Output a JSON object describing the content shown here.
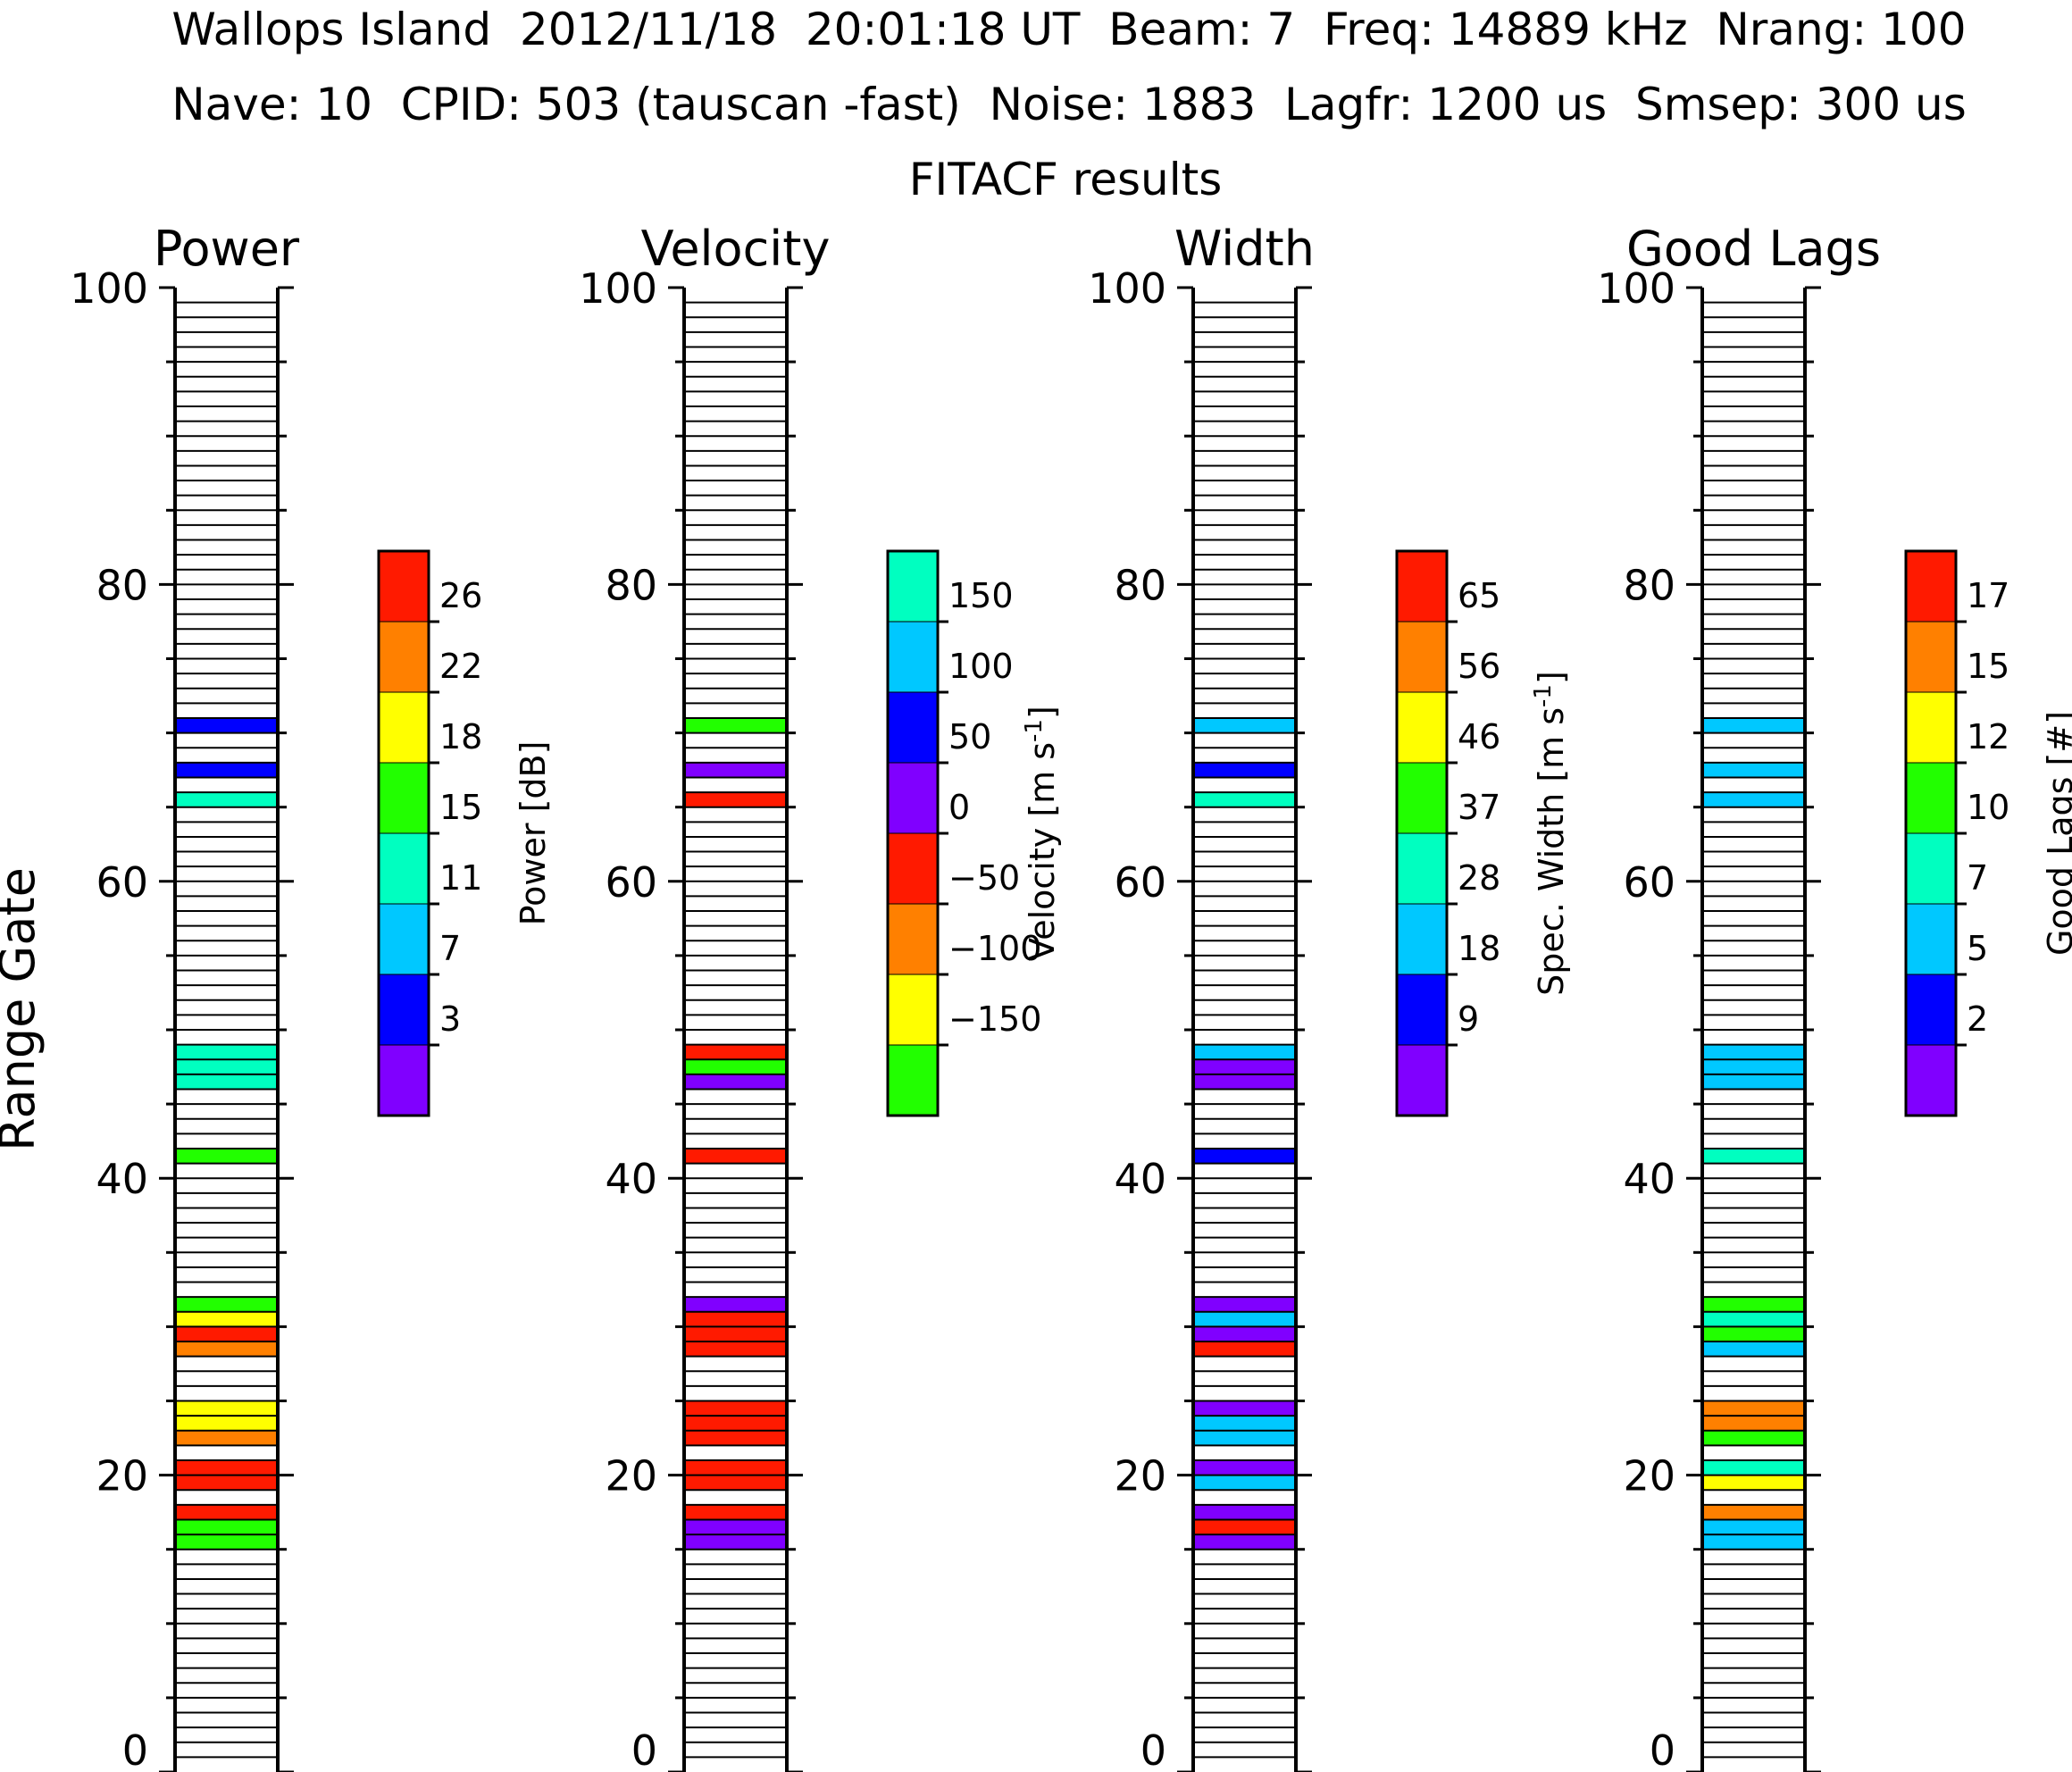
{
  "header": {
    "line1": "Wallops Island  2012/11/18  20:01:18 UT  Beam: 7  Freq: 14889 kHz  Nrang: 100",
    "line2": "Nave: 10  CPID: 503 (tauscan -fast)  Noise: 1883  Lagfr: 1200 us  Smsep: 300 us",
    "subtitle": "FITACF results"
  },
  "y_axis_label": "Range Gate",
  "colors": {
    "purple": "#8000ff",
    "blue": "#0000ff",
    "cyan": "#00c8ff",
    "aqua": "#00ffc0",
    "green": "#22ff00",
    "yellow": "#ffff00",
    "orange": "#ff8000",
    "red": "#ff1a00"
  },
  "chart_data": [
    {
      "type": "heatmap",
      "title": "Power",
      "ylabel": "Range Gate",
      "ylim": [
        0,
        100
      ],
      "y_ticks": [
        "0",
        "20",
        "40",
        "60",
        "80",
        "100"
      ],
      "colorbar": {
        "label": "Power [dB]",
        "ticks": [
          "3",
          "7",
          "11",
          "15",
          "18",
          "22",
          "26"
        ],
        "colors": [
          "#8000ff",
          "#0000ff",
          "#00c8ff",
          "#00ffc0",
          "#22ff00",
          "#ffff00",
          "#ff8000",
          "#ff1a00"
        ]
      },
      "cells": [
        {
          "gate": 15,
          "color": "#22ff00"
        },
        {
          "gate": 16,
          "color": "#22ff00"
        },
        {
          "gate": 17,
          "color": "#ff1a00"
        },
        {
          "gate": 19,
          "color": "#ff1a00"
        },
        {
          "gate": 20,
          "color": "#ff1a00"
        },
        {
          "gate": 22,
          "color": "#ff8000"
        },
        {
          "gate": 23,
          "color": "#ffff00"
        },
        {
          "gate": 24,
          "color": "#ffff00"
        },
        {
          "gate": 28,
          "color": "#ff8000"
        },
        {
          "gate": 29,
          "color": "#ff1a00"
        },
        {
          "gate": 30,
          "color": "#ffff00"
        },
        {
          "gate": 31,
          "color": "#22ff00"
        },
        {
          "gate": 41,
          "color": "#22ff00"
        },
        {
          "gate": 46,
          "color": "#00ffc0"
        },
        {
          "gate": 47,
          "color": "#00ffc0"
        },
        {
          "gate": 48,
          "color": "#00ffc0"
        },
        {
          "gate": 65,
          "color": "#00ffc0"
        },
        {
          "gate": 67,
          "color": "#0000ff"
        },
        {
          "gate": 70,
          "color": "#0000ff"
        }
      ]
    },
    {
      "type": "heatmap",
      "title": "Velocity",
      "ylim": [
        0,
        100
      ],
      "y_ticks": [
        "0",
        "20",
        "40",
        "60",
        "80",
        "100"
      ],
      "colorbar": {
        "label": "Velocity [m s-1]",
        "ticks": [
          "−150",
          "−100",
          "−50",
          "0",
          "50",
          "100",
          "150"
        ],
        "colors": [
          "#22ff00",
          "#ffff00",
          "#ff8000",
          "#ff1a00",
          "#8000ff",
          "#0000ff",
          "#00c8ff",
          "#00ffc0"
        ]
      },
      "cells": [
        {
          "gate": 15,
          "color": "#8000ff"
        },
        {
          "gate": 16,
          "color": "#8000ff"
        },
        {
          "gate": 17,
          "color": "#ff1a00"
        },
        {
          "gate": 19,
          "color": "#ff1a00"
        },
        {
          "gate": 20,
          "color": "#ff1a00"
        },
        {
          "gate": 22,
          "color": "#ff1a00"
        },
        {
          "gate": 23,
          "color": "#ff1a00"
        },
        {
          "gate": 24,
          "color": "#ff1a00"
        },
        {
          "gate": 28,
          "color": "#ff1a00"
        },
        {
          "gate": 29,
          "color": "#ff1a00"
        },
        {
          "gate": 30,
          "color": "#ff1a00"
        },
        {
          "gate": 31,
          "color": "#8000ff"
        },
        {
          "gate": 41,
          "color": "#ff1a00"
        },
        {
          "gate": 46,
          "color": "#8000ff"
        },
        {
          "gate": 47,
          "color": "#22ff00"
        },
        {
          "gate": 48,
          "color": "#ff1a00"
        },
        {
          "gate": 65,
          "color": "#ff1a00"
        },
        {
          "gate": 67,
          "color": "#8000ff"
        },
        {
          "gate": 70,
          "color": "#22ff00"
        }
      ]
    },
    {
      "type": "heatmap",
      "title": "Width",
      "ylim": [
        0,
        100
      ],
      "y_ticks": [
        "0",
        "20",
        "40",
        "60",
        "80",
        "100"
      ],
      "colorbar": {
        "label": "Spec. Width [m s-1]",
        "ticks": [
          "9",
          "18",
          "28",
          "37",
          "46",
          "56",
          "65"
        ],
        "colors": [
          "#8000ff",
          "#0000ff",
          "#00c8ff",
          "#00ffc0",
          "#22ff00",
          "#ffff00",
          "#ff8000",
          "#ff1a00"
        ]
      },
      "cells": [
        {
          "gate": 15,
          "color": "#8000ff"
        },
        {
          "gate": 16,
          "color": "#ff1a00"
        },
        {
          "gate": 17,
          "color": "#8000ff"
        },
        {
          "gate": 19,
          "color": "#00c8ff"
        },
        {
          "gate": 20,
          "color": "#8000ff"
        },
        {
          "gate": 22,
          "color": "#00c8ff"
        },
        {
          "gate": 23,
          "color": "#00c8ff"
        },
        {
          "gate": 24,
          "color": "#8000ff"
        },
        {
          "gate": 28,
          "color": "#ff1a00"
        },
        {
          "gate": 29,
          "color": "#8000ff"
        },
        {
          "gate": 30,
          "color": "#00c8ff"
        },
        {
          "gate": 31,
          "color": "#8000ff"
        },
        {
          "gate": 41,
          "color": "#0000ff"
        },
        {
          "gate": 46,
          "color": "#8000ff"
        },
        {
          "gate": 47,
          "color": "#8000ff"
        },
        {
          "gate": 48,
          "color": "#00c8ff"
        },
        {
          "gate": 65,
          "color": "#00ffc0"
        },
        {
          "gate": 67,
          "color": "#0000ff"
        },
        {
          "gate": 70,
          "color": "#00c8ff"
        }
      ]
    },
    {
      "type": "heatmap",
      "title": "Good Lags",
      "ylim": [
        0,
        100
      ],
      "y_ticks": [
        "0",
        "20",
        "40",
        "60",
        "80",
        "100"
      ],
      "colorbar": {
        "label": "Good Lags [#]",
        "ticks": [
          "2",
          "5",
          "7",
          "10",
          "12",
          "15",
          "17"
        ],
        "colors": [
          "#8000ff",
          "#0000ff",
          "#00c8ff",
          "#00ffc0",
          "#22ff00",
          "#ffff00",
          "#ff8000",
          "#ff1a00"
        ]
      },
      "cells": [
        {
          "gate": 15,
          "color": "#00c8ff"
        },
        {
          "gate": 16,
          "color": "#00c8ff"
        },
        {
          "gate": 17,
          "color": "#ff8000"
        },
        {
          "gate": 19,
          "color": "#ffff00"
        },
        {
          "gate": 20,
          "color": "#00ffc0"
        },
        {
          "gate": 22,
          "color": "#22ff00"
        },
        {
          "gate": 23,
          "color": "#ff8000"
        },
        {
          "gate": 24,
          "color": "#ff8000"
        },
        {
          "gate": 28,
          "color": "#00c8ff"
        },
        {
          "gate": 29,
          "color": "#22ff00"
        },
        {
          "gate": 30,
          "color": "#00ffc0"
        },
        {
          "gate": 31,
          "color": "#22ff00"
        },
        {
          "gate": 41,
          "color": "#00ffc0"
        },
        {
          "gate": 46,
          "color": "#00c8ff"
        },
        {
          "gate": 47,
          "color": "#00c8ff"
        },
        {
          "gate": 48,
          "color": "#00c8ff"
        },
        {
          "gate": 65,
          "color": "#00c8ff"
        },
        {
          "gate": 67,
          "color": "#00c8ff"
        },
        {
          "gate": 70,
          "color": "#00c8ff"
        }
      ]
    }
  ]
}
